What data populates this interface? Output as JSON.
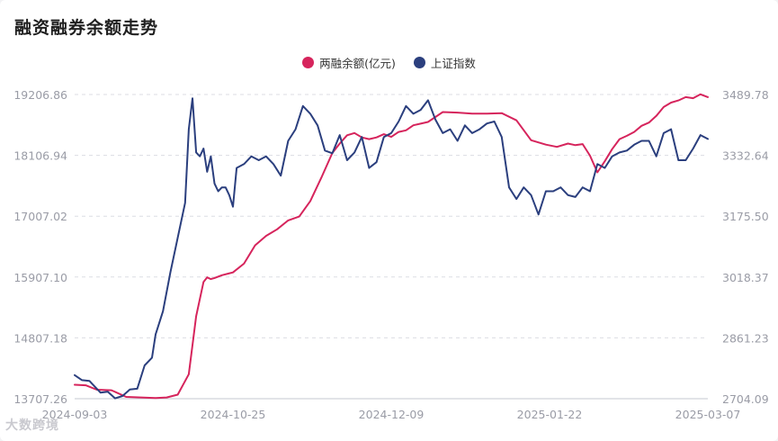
{
  "chart_data": {
    "type": "line",
    "title": "融资融券余额走势",
    "x_ticks": [
      "2024-09-03",
      "2024-10-25",
      "2024-12-09",
      "2025-01-22",
      "2025-03-07"
    ],
    "y_left_ticks": [
      "19206.86",
      "18106.94",
      "17007.02",
      "15907.10",
      "14807.18",
      "13707.26"
    ],
    "y_right_ticks": [
      "3489.78",
      "3332.64",
      "3175.50",
      "3018.37",
      "2861.23",
      "2704.09"
    ],
    "y_left_range": [
      13707.26,
      19206.86
    ],
    "y_right_range": [
      2704.09,
      3489.78
    ],
    "legend_position": "top-center",
    "grid": "horizontal dashed",
    "series": [
      {
        "name": "两融余额(亿元)",
        "axis": "left",
        "color": "#d6245c",
        "x": [
          0,
          3,
          6,
          10,
          14,
          18,
          22,
          25,
          28,
          31,
          33,
          35,
          36,
          37,
          38,
          40,
          43,
          46,
          49,
          52,
          55,
          58,
          61,
          64,
          67,
          70,
          72,
          74,
          76,
          78,
          80,
          82,
          84,
          86,
          88,
          90,
          92,
          94,
          96,
          98,
          100,
          104,
          108,
          112,
          116,
          120,
          124,
          128,
          131,
          134,
          136,
          138,
          140,
          142,
          144,
          146,
          148,
          150,
          152,
          154,
          156,
          158,
          160,
          162,
          164,
          166,
          168,
          170,
          172
        ],
        "values": [
          13960,
          13950,
          13870,
          13860,
          13740,
          13730,
          13720,
          13730,
          13780,
          14150,
          15200,
          15820,
          15900,
          15870,
          15890,
          15940,
          15990,
          16150,
          16480,
          16650,
          16770,
          16930,
          17000,
          17280,
          17700,
          18150,
          18320,
          18470,
          18510,
          18430,
          18400,
          18430,
          18490,
          18440,
          18530,
          18560,
          18650,
          18680,
          18710,
          18800,
          18890,
          18880,
          18860,
          18860,
          18870,
          18740,
          18380,
          18300,
          18260,
          18320,
          18290,
          18310,
          18100,
          17800,
          18000,
          18220,
          18400,
          18460,
          18530,
          18640,
          18700,
          18820,
          18980,
          19060,
          19100,
          19160,
          19140,
          19210,
          19160
        ]
      },
      {
        "name": "上证指数",
        "axis": "right",
        "color": "#2b3f7e",
        "x": [
          0,
          2,
          4,
          5,
          7,
          9,
          11,
          13,
          15,
          17,
          19,
          21,
          22,
          24,
          26,
          28,
          30,
          31,
          32,
          33,
          34,
          35,
          36,
          37,
          38,
          39,
          40,
          41,
          42,
          43,
          44,
          46,
          48,
          50,
          52,
          54,
          56,
          58,
          60,
          62,
          64,
          66,
          68,
          70,
          72,
          74,
          76,
          78,
          80,
          82,
          84,
          86,
          88,
          90,
          92,
          94,
          96,
          98,
          100,
          102,
          104,
          106,
          108,
          110,
          112,
          114,
          116,
          118,
          120,
          122,
          124,
          126,
          128,
          130,
          132,
          134,
          136,
          138,
          140,
          142,
          144,
          146,
          148,
          150,
          152,
          154,
          156,
          158,
          160,
          162,
          164,
          166,
          168,
          170,
          172
        ],
        "values": [
          2765,
          2752,
          2750,
          2740,
          2720,
          2722,
          2705,
          2711,
          2728,
          2730,
          2790,
          2810,
          2870,
          2930,
          3030,
          3120,
          3210,
          3400,
          3480,
          3340,
          3330,
          3350,
          3290,
          3330,
          3260,
          3240,
          3250,
          3250,
          3230,
          3200,
          3300,
          3310,
          3330,
          3320,
          3330,
          3310,
          3280,
          3370,
          3400,
          3460,
          3440,
          3410,
          3345,
          3338,
          3385,
          3320,
          3340,
          3380,
          3300,
          3315,
          3380,
          3390,
          3420,
          3460,
          3440,
          3450,
          3475,
          3425,
          3390,
          3400,
          3370,
          3410,
          3390,
          3400,
          3415,
          3420,
          3380,
          3250,
          3220,
          3250,
          3230,
          3180,
          3240,
          3240,
          3250,
          3230,
          3225,
          3250,
          3240,
          3310,
          3300,
          3330,
          3340,
          3345,
          3360,
          3370,
          3370,
          3330,
          3390,
          3400,
          3320,
          3320,
          3350,
          3385,
          3375
        ]
      }
    ]
  },
  "legend": {
    "series1_label": "两融余额(亿元)",
    "series2_label": "上证指数",
    "series1_color": "#d6245c",
    "series2_color": "#2b3f7e"
  },
  "watermark": "大数跨境"
}
